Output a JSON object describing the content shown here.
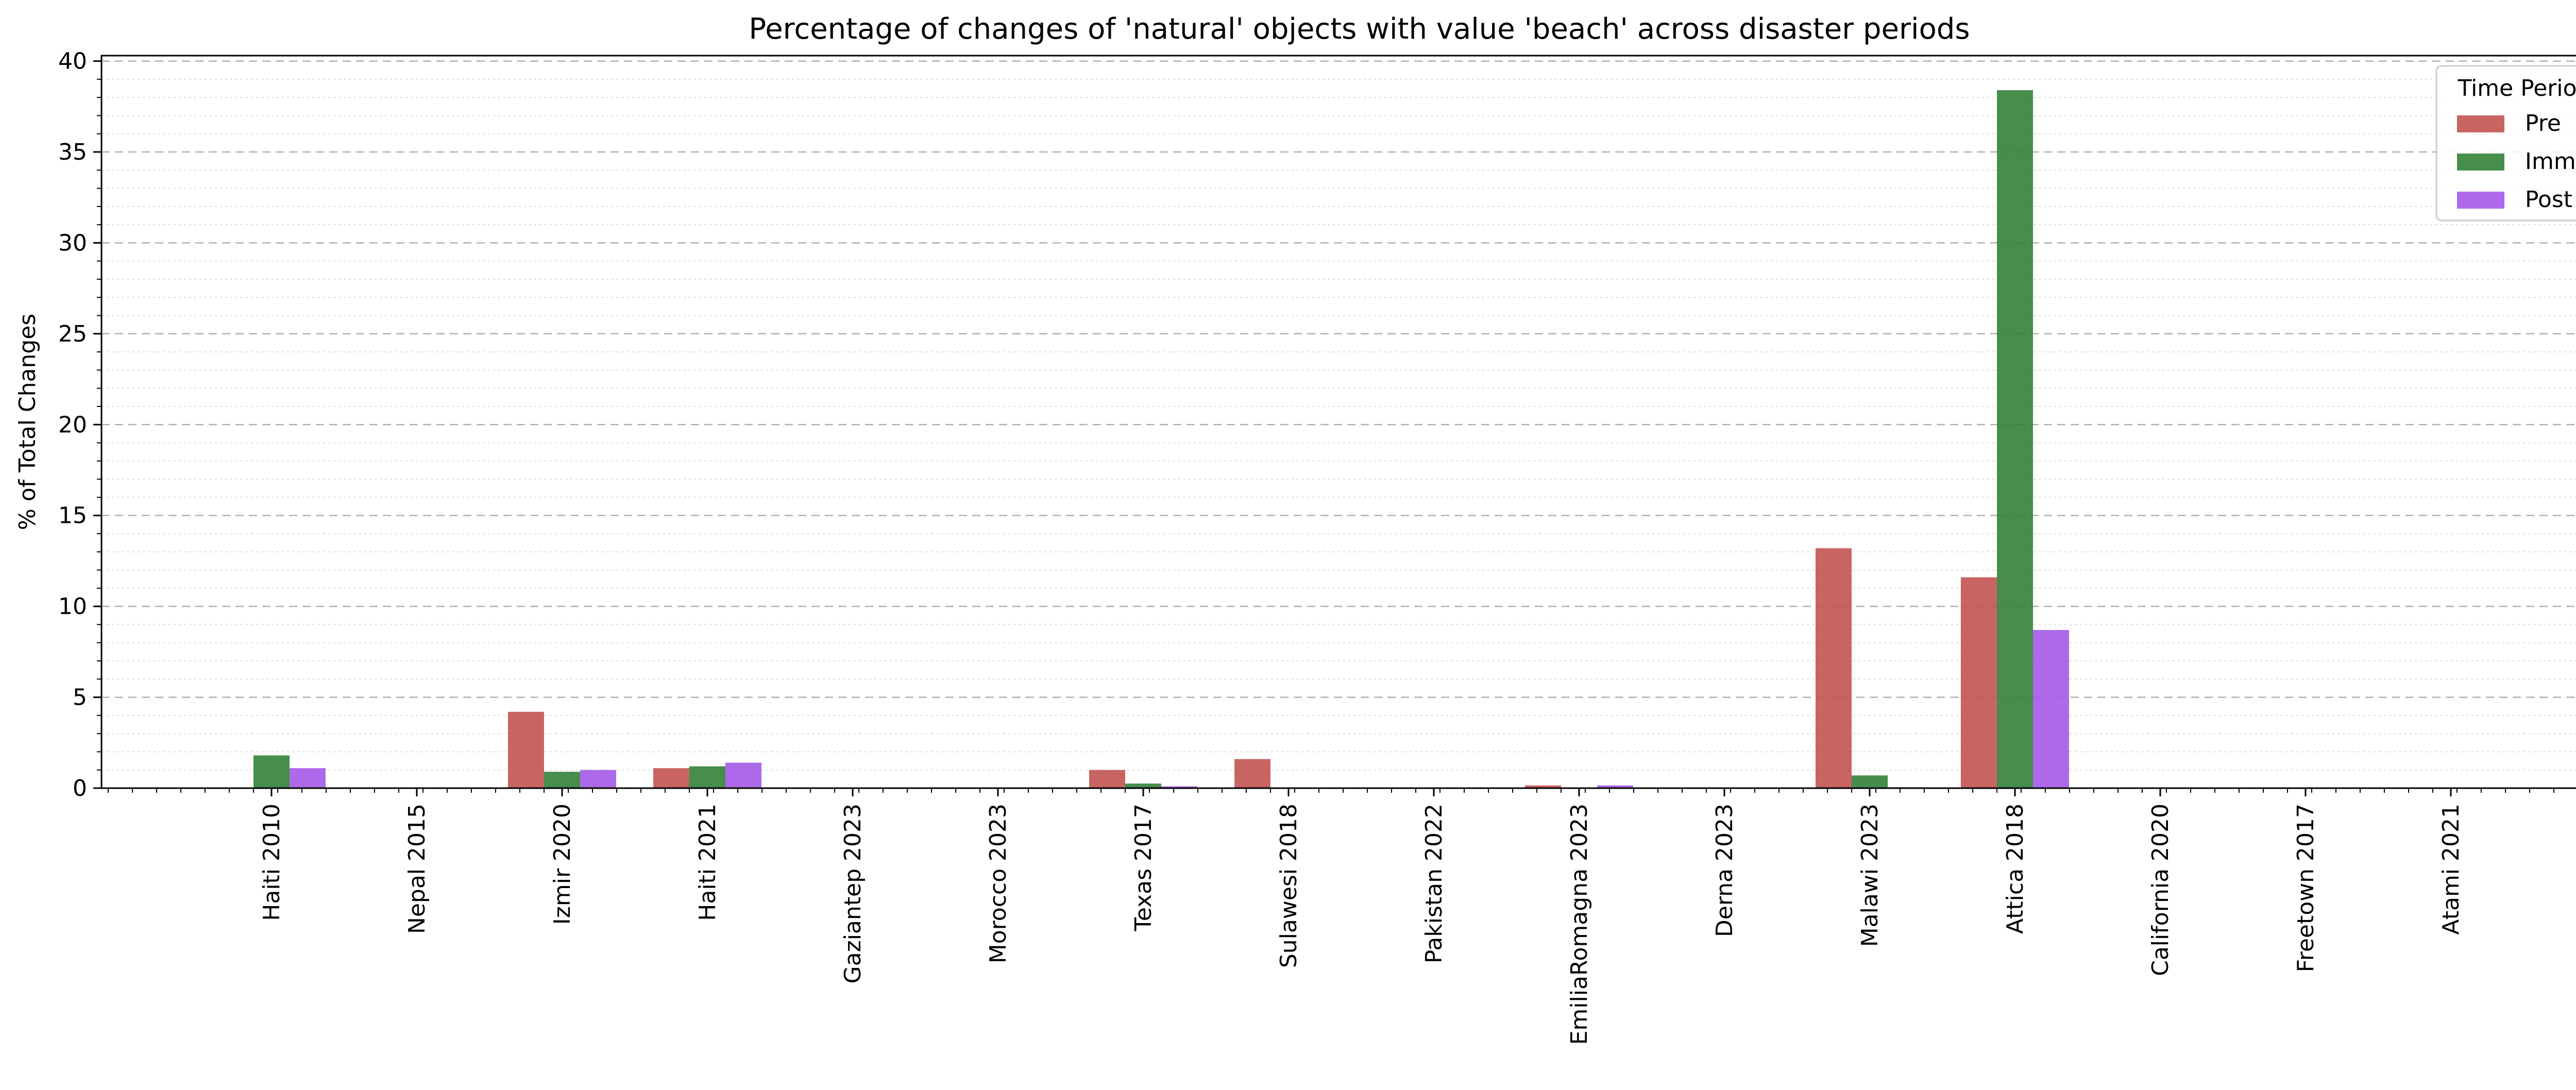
{
  "chart_data": {
    "type": "bar",
    "title": "Percentage of changes of 'natural' objects with value 'beach' across disaster periods",
    "xlabel": "",
    "ylabel": "% of Total Changes",
    "ylim": [
      0,
      40.3
    ],
    "yticks": [
      0,
      5,
      10,
      15,
      20,
      25,
      30,
      35,
      40
    ],
    "grid": true,
    "legend_title": "Time Period",
    "legend_position": "top-right",
    "categories": [
      "Haiti 2010",
      "Nepal 2015",
      "Izmir 2020",
      "Haiti 2021",
      "Gaziantep 2023",
      "Morocco 2023",
      "Texas 2017",
      "Sulawesi 2018",
      "Pakistan 2022",
      "EmiliaRomagna 2023",
      "Derna 2023",
      "Malawi 2023",
      "Attica 2018",
      "California 2020",
      "Freetown 2017",
      "Atami 2021"
    ],
    "series": [
      {
        "name": "Pre",
        "color": "#c0504d",
        "values": [
          0,
          0,
          4.2,
          1.1,
          0,
          0,
          1.0,
          1.6,
          0,
          0.15,
          0,
          13.2,
          11.6,
          0,
          0,
          0
        ]
      },
      {
        "name": "Imm",
        "color": "#2e7d32",
        "values": [
          1.8,
          0,
          0.9,
          1.2,
          0,
          0,
          0.25,
          0,
          0,
          0,
          0,
          0.7,
          38.4,
          0,
          0,
          0
        ]
      },
      {
        "name": "Post",
        "color": "#a155e8",
        "values": [
          1.1,
          0,
          1.0,
          1.4,
          0,
          0,
          0.1,
          0,
          0,
          0.15,
          0,
          0.05,
          8.7,
          0,
          0,
          0
        ]
      }
    ]
  }
}
